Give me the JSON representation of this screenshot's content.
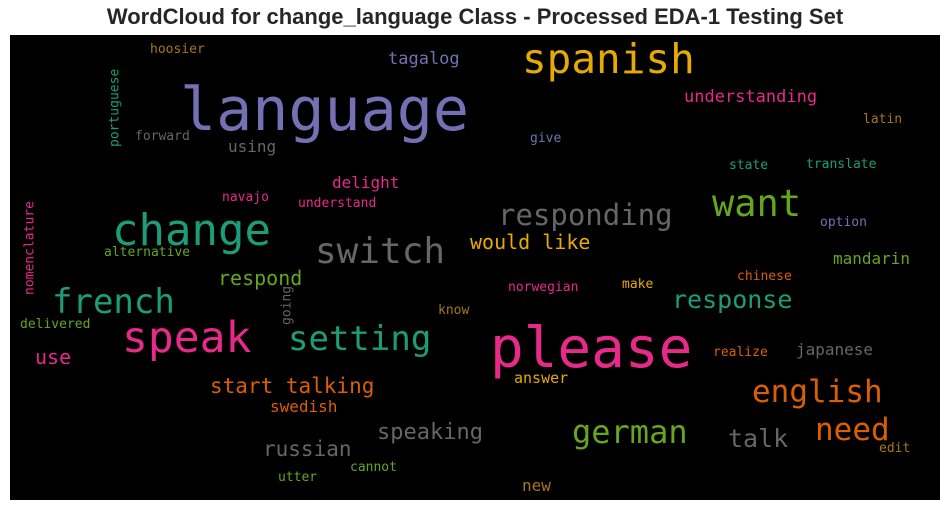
{
  "chart_data": {
    "type": "wordcloud",
    "title": "WordCloud for change_language Class - Processed EDA-1 Testing Set",
    "background": "#000000",
    "palette": [
      "#1b9e77",
      "#d95f02",
      "#7570b3",
      "#e7298a",
      "#66a61e",
      "#e6ab02",
      "#a6761d",
      "#666666"
    ],
    "words": [
      {
        "text": "language",
        "color": "#7570b3"
      },
      {
        "text": "please",
        "color": "#e7298a"
      },
      {
        "text": "change",
        "color": "#1b9e77"
      },
      {
        "text": "spanish",
        "color": "#e6ab02"
      },
      {
        "text": "switch",
        "color": "#666666"
      },
      {
        "text": "speak",
        "color": "#e7298a"
      },
      {
        "text": "want",
        "color": "#66a61e"
      },
      {
        "text": "setting",
        "color": "#1b9e77"
      },
      {
        "text": "french",
        "color": "#1b9e77"
      },
      {
        "text": "responding",
        "color": "#666666"
      },
      {
        "text": "german",
        "color": "#66a61e"
      },
      {
        "text": "english",
        "color": "#d95f02"
      },
      {
        "text": "need",
        "color": "#d95f02"
      },
      {
        "text": "response",
        "color": "#1b9e77"
      },
      {
        "text": "talk",
        "color": "#666666"
      },
      {
        "text": "speaking",
        "color": "#666666"
      },
      {
        "text": "start talking",
        "color": "#d95f02"
      },
      {
        "text": "would like",
        "color": "#e6ab02"
      },
      {
        "text": "russian",
        "color": "#666666"
      },
      {
        "text": "respond",
        "color": "#66a61e"
      },
      {
        "text": "understanding",
        "color": "#e7298a"
      },
      {
        "text": "tagalog",
        "color": "#7570b3"
      },
      {
        "text": "use",
        "color": "#e7298a"
      },
      {
        "text": "using",
        "color": "#666666"
      },
      {
        "text": "mandarin",
        "color": "#66a61e"
      },
      {
        "text": "delight",
        "color": "#e7298a"
      },
      {
        "text": "japanese",
        "color": "#666666"
      },
      {
        "text": "swedish",
        "color": "#d95f02"
      },
      {
        "text": "answer",
        "color": "#e6ab02"
      },
      {
        "text": "new",
        "color": "#a6761d"
      },
      {
        "text": "hoosier",
        "color": "#a6761d"
      },
      {
        "text": "portuguese",
        "color": "#1b9e77"
      },
      {
        "text": "forward",
        "color": "#666666"
      },
      {
        "text": "give",
        "color": "#7570b3"
      },
      {
        "text": "latin",
        "color": "#a6761d"
      },
      {
        "text": "state",
        "color": "#1b9e77"
      },
      {
        "text": "translate",
        "color": "#1b9e77"
      },
      {
        "text": "navajo",
        "color": "#e7298a"
      },
      {
        "text": "understand",
        "color": "#e7298a"
      },
      {
        "text": "option",
        "color": "#7570b3"
      },
      {
        "text": "nomenclature",
        "color": "#e7298a"
      },
      {
        "text": "alternative",
        "color": "#66a61e"
      },
      {
        "text": "chinese",
        "color": "#d95f02"
      },
      {
        "text": "norwegian",
        "color": "#e7298a"
      },
      {
        "text": "make",
        "color": "#e6ab02"
      },
      {
        "text": "going",
        "color": "#666666"
      },
      {
        "text": "delivered",
        "color": "#66a61e"
      },
      {
        "text": "know",
        "color": "#a6761d"
      },
      {
        "text": "realize",
        "color": "#d95f02"
      },
      {
        "text": "edit",
        "color": "#a6761d"
      },
      {
        "text": "cannot",
        "color": "#66a61e"
      },
      {
        "text": "utter",
        "color": "#66a61e"
      }
    ]
  }
}
